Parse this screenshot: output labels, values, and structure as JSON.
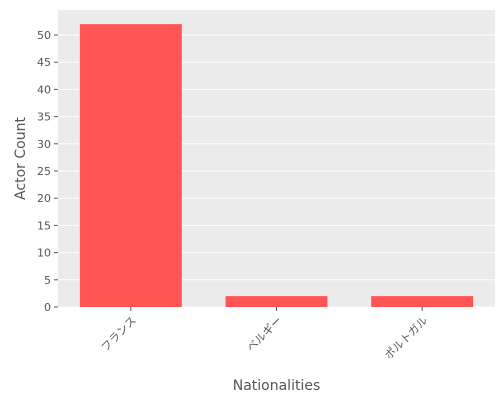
{
  "chart_data": {
    "type": "bar",
    "title": "",
    "xlabel": "Nationalities",
    "ylabel": "Actor Count",
    "categories": [
      "フランス",
      "ベルギー",
      "ポルトガル"
    ],
    "values": [
      52,
      2,
      2
    ],
    "ylim": [
      0,
      54.6
    ],
    "yticks": [
      0,
      5,
      10,
      15,
      20,
      25,
      30,
      35,
      40,
      45,
      50
    ],
    "grid": true,
    "bar_color": "#ff5555",
    "background_color": "#ebebeb",
    "grid_color": "#ffffff"
  }
}
